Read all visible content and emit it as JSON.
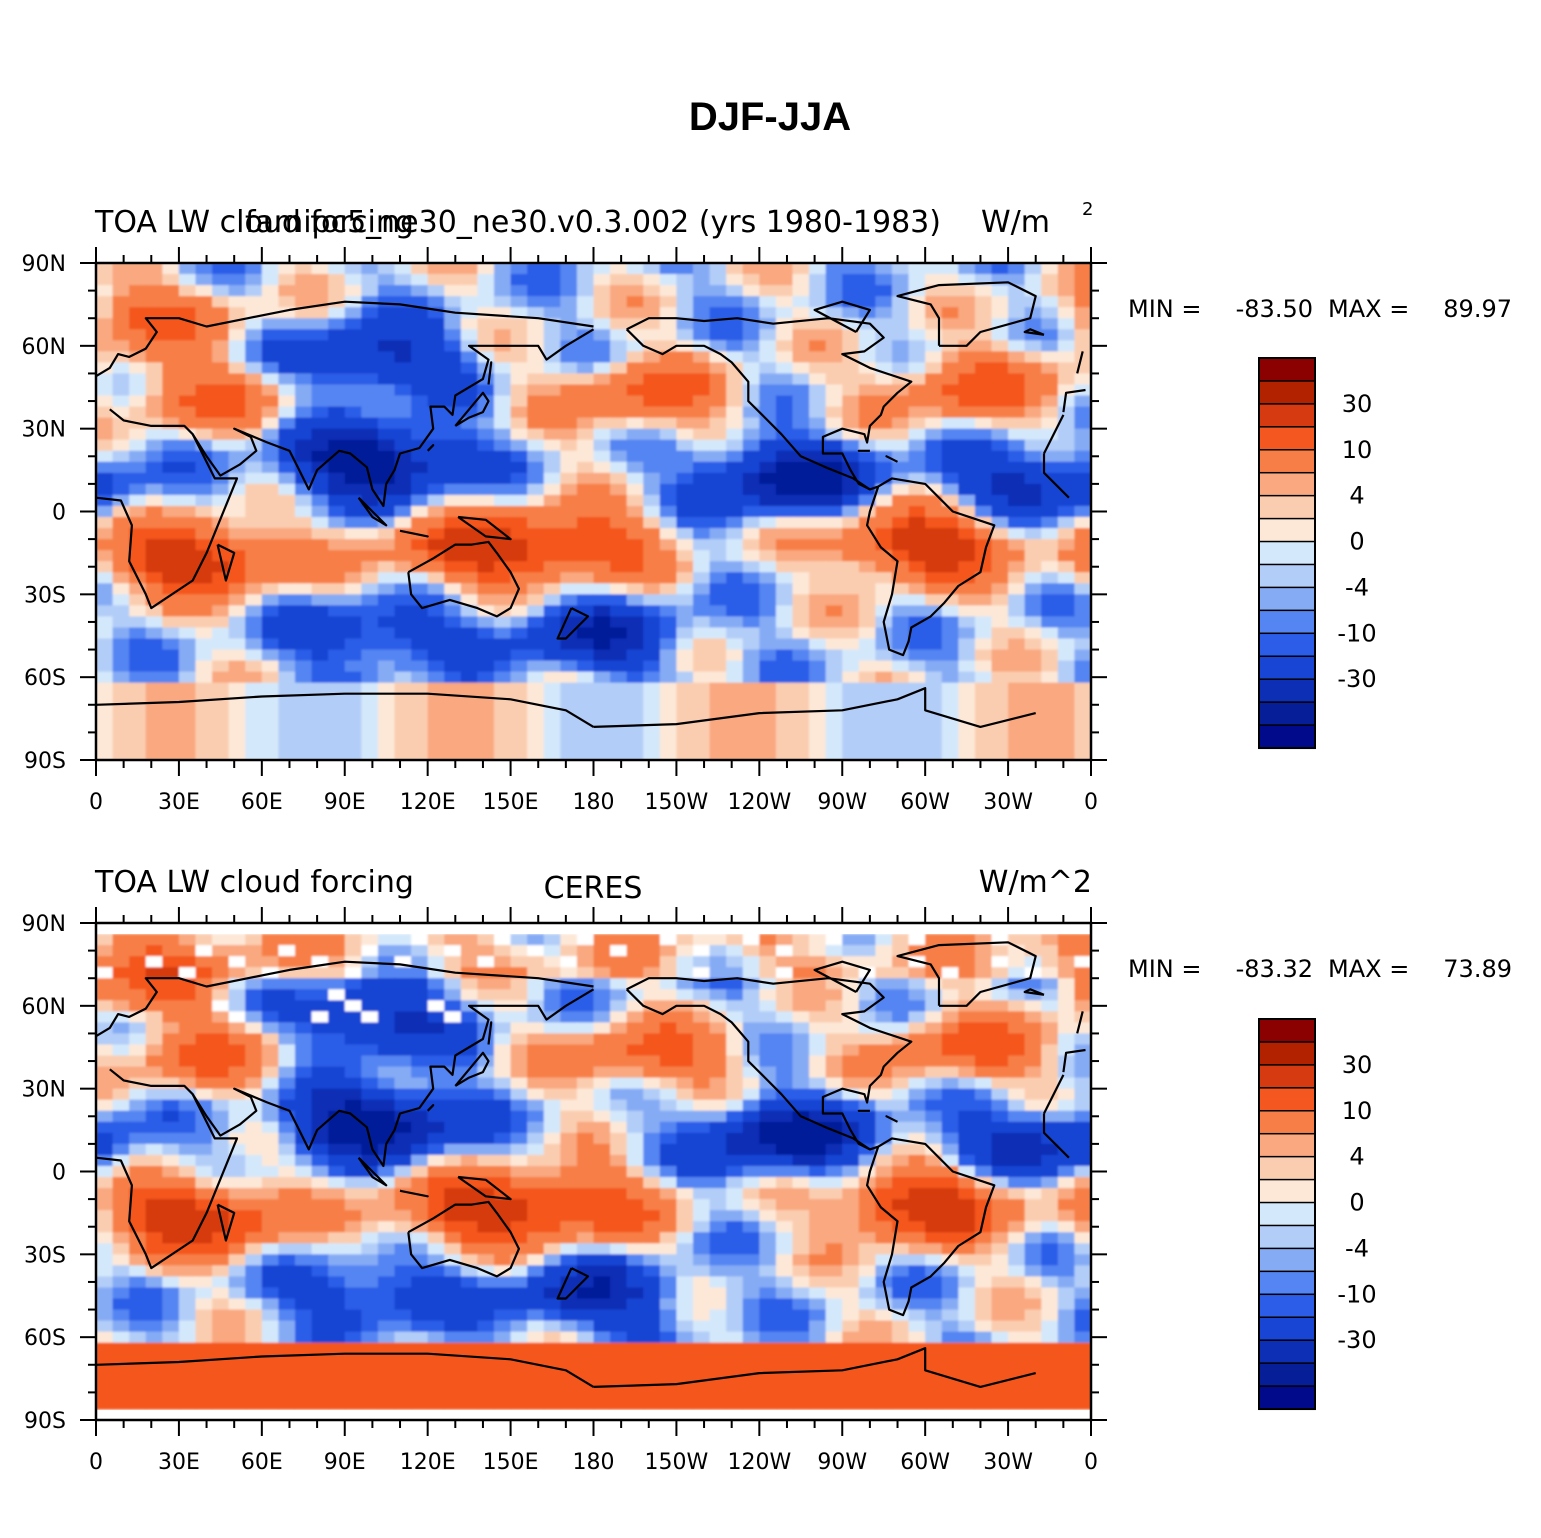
{
  "main_title": "DJF-JJA",
  "panels": [
    {
      "left_title": "TOA LW cloud forcing",
      "center_title": "famipc5_ne30_ne30.v0.3.002 (yrs 1980-1983)",
      "right_title": "W/m",
      "right_title_sup": "2",
      "min_label": "MIN =",
      "min_value": "-83.50",
      "max_label": "MAX =",
      "max_value": "89.97",
      "missing_data": false
    },
    {
      "left_title": "TOA LW cloud forcing",
      "center_title": "CERES",
      "right_title": "W/m^2",
      "right_title_sup": "",
      "min_label": "MIN =",
      "min_value": "-83.32",
      "max_label": "MAX =",
      "max_value": "73.89",
      "missing_data": true
    }
  ],
  "lat_ticks": [
    "90N",
    "60N",
    "30N",
    "0",
    "30S",
    "60S",
    "90S"
  ],
  "lon_ticks": [
    "0",
    "30E",
    "60E",
    "90E",
    "120E",
    "150E",
    "180",
    "150W",
    "120W",
    "90W",
    "60W",
    "30W",
    "0"
  ],
  "colorbar": {
    "labels": [
      "30",
      "10",
      "4",
      "0",
      "-4",
      "-10",
      "-30"
    ],
    "colors": [
      "#8b0000",
      "#b22200",
      "#d63a10",
      "#f4571f",
      "#f77f47",
      "#f9a880",
      "#fbcdb0",
      "#fde8d8",
      "#d4e8fb",
      "#b2cdf8",
      "#86abf5",
      "#5485f2",
      "#2b5de8",
      "#1845d4",
      "#0c2fb5",
      "#061f99",
      "#000a8a"
    ]
  },
  "chart_data": {
    "type": "heatmap",
    "title": "DJF-JJA",
    "variable": "TOA LW cloud forcing",
    "units": "W/m^2",
    "x_range": [
      0,
      360
    ],
    "y_range": [
      -90,
      90
    ],
    "xlabel": "",
    "ylabel": "",
    "contour_levels": [
      -45,
      -30,
      -20,
      -10,
      -7,
      -4,
      -2,
      0,
      2,
      4,
      7,
      10,
      20,
      30,
      45,
      60
    ],
    "features": [
      {
        "lon": 35,
        "lat": -17,
        "value": 40
      },
      {
        "lon": 300,
        "lat": -12,
        "value": 40
      },
      {
        "lon": 135,
        "lat": -14,
        "value": 30
      },
      {
        "lon": 175,
        "lat": -12,
        "value": 25
      },
      {
        "lon": 40,
        "lat": 42,
        "value": 20
      },
      {
        "lon": 200,
        "lat": 42,
        "value": 22
      },
      {
        "lon": 315,
        "lat": 45,
        "value": 22
      },
      {
        "lon": 20,
        "lat": 70,
        "value": 20
      },
      {
        "lon": 100,
        "lat": 18,
        "value": -40
      },
      {
        "lon": 250,
        "lat": 12,
        "value": -35
      },
      {
        "lon": 340,
        "lat": 10,
        "value": -25
      },
      {
        "lon": 100,
        "lat": 55,
        "value": -25
      },
      {
        "lon": 180,
        "lat": -45,
        "value": -25
      },
      {
        "lon": 100,
        "lat": -45,
        "value": -18
      }
    ]
  }
}
